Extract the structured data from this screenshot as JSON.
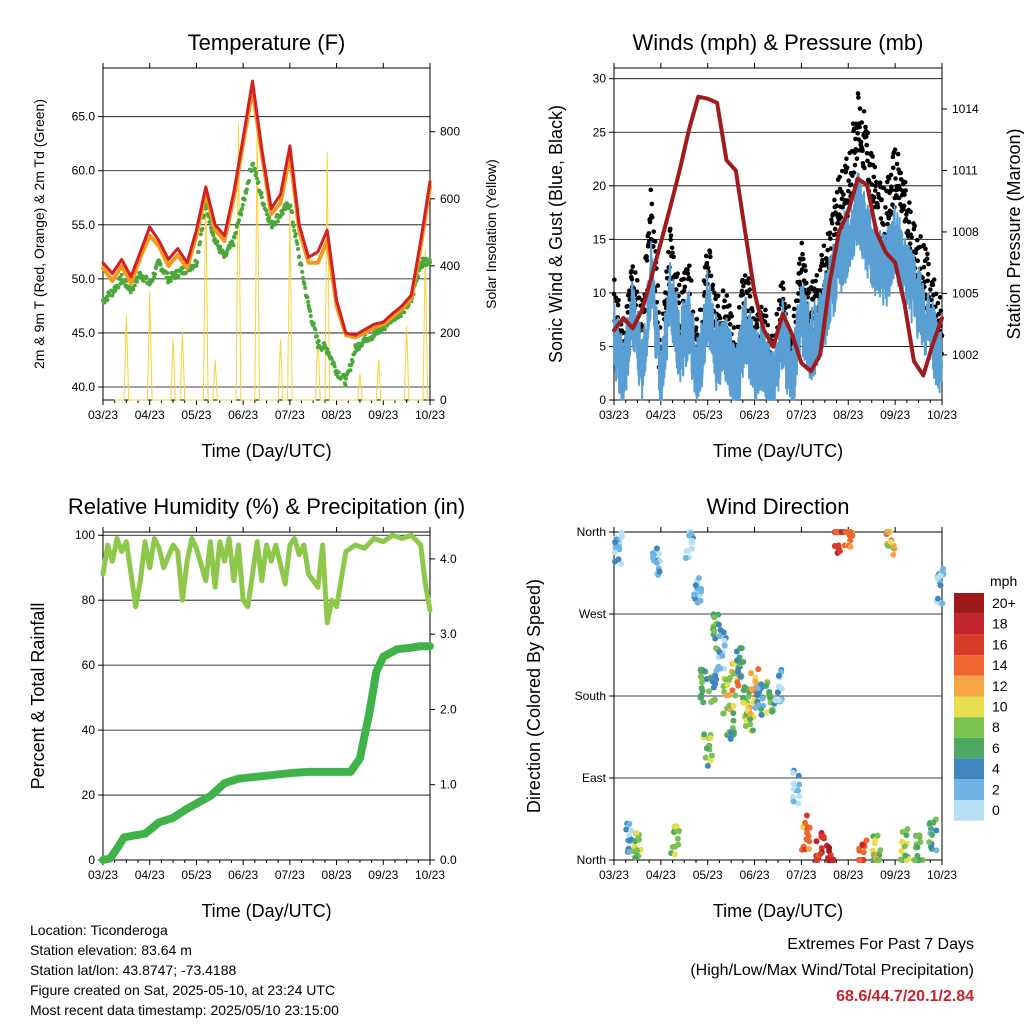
{
  "footer": {
    "location": "Location: Ticonderoga",
    "elevation": "Station elevation: 83.64 m",
    "latlon": "Station lat/lon: 43.8747; -73.4188",
    "created": "Figure created on Sat, 2025-05-10, at 23:24 UTC",
    "recent": "Most recent data timestamp: 2025/05/10 23:15:00",
    "extremes_title": "Extremes For Past 7 Days",
    "extremes_sub": "(High/Low/Max Wind/Total Precipitation)",
    "extremes_values": "68.6/44.7/20.1/2.84"
  },
  "colors": {
    "temp9m": "#d42020",
    "temp2m": "#f39a1e",
    "dewpoint": "#4aa83a",
    "solar": "#f5d33b",
    "gust": "#000000",
    "wind": "#5a9fd4",
    "pressure": "#a01c1c",
    "rh": "#8ec84a",
    "precip": "#3fb34a"
  },
  "chart_data": [
    {
      "type": "line",
      "title": "Temperature (F)",
      "xlabel": "Time (Day/UTC)",
      "ylabel": "2m & 9m T (Red, Orange) & 2m Td (Green)",
      "ylabel_right": "Solar Insolation (Yellow)",
      "xticks": [
        "03/23",
        "04/23",
        "05/23",
        "06/23",
        "07/23",
        "08/23",
        "09/23",
        "10/23"
      ],
      "xlim": [
        0,
        7
      ],
      "ylim": [
        38.8,
        69.5
      ],
      "yticks": [
        "40.0",
        "45.0",
        "50.0",
        "55.0",
        "60.0",
        "65.0"
      ],
      "ylim_right": [
        0,
        990
      ],
      "yticks_right": [
        "0",
        "200",
        "400",
        "600",
        "800"
      ],
      "grid": true,
      "series": [
        {
          "name": "9m T",
          "axis": "left",
          "x": [
            0,
            0.2,
            0.4,
            0.6,
            0.8,
            1.0,
            1.2,
            1.4,
            1.6,
            1.8,
            2.0,
            2.2,
            2.4,
            2.6,
            2.8,
            3.0,
            3.2,
            3.4,
            3.6,
            3.8,
            4.0,
            4.2,
            4.4,
            4.6,
            4.8,
            5.0,
            5.2,
            5.4,
            5.6,
            5.8,
            6.0,
            6.2,
            6.4,
            6.6,
            6.8,
            7.0
          ],
          "y": [
            51.5,
            50.5,
            51.8,
            50.2,
            52.5,
            54.8,
            53.5,
            51.8,
            52.8,
            51.5,
            54.5,
            58.5,
            55.0,
            54.0,
            58.0,
            63.0,
            68.3,
            62.0,
            56.5,
            57.8,
            62.3,
            55.0,
            52.0,
            52.5,
            54.5,
            48.0,
            45.0,
            44.8,
            45.3,
            45.8,
            46.0,
            46.8,
            47.5,
            48.5,
            53.5,
            59.0
          ]
        },
        {
          "name": "2m T",
          "axis": "left",
          "x": [
            0,
            0.2,
            0.4,
            0.6,
            0.8,
            1.0,
            1.2,
            1.4,
            1.6,
            1.8,
            2.0,
            2.2,
            2.4,
            2.6,
            2.8,
            3.0,
            3.2,
            3.4,
            3.6,
            3.8,
            4.0,
            4.2,
            4.4,
            4.6,
            4.8,
            5.0,
            5.2,
            5.4,
            5.6,
            5.8,
            6.0,
            6.2,
            6.4,
            6.6,
            6.8,
            7.0
          ],
          "y": [
            51.0,
            49.8,
            51.2,
            49.6,
            52.0,
            54.0,
            53.0,
            51.2,
            52.2,
            51.0,
            54.0,
            58.0,
            54.5,
            53.5,
            57.5,
            62.5,
            67.5,
            61.5,
            56.0,
            57.0,
            61.5,
            54.5,
            51.5,
            51.5,
            53.5,
            47.5,
            44.8,
            44.6,
            45.0,
            45.5,
            45.8,
            46.5,
            47.2,
            48.2,
            53.0,
            58.5
          ]
        },
        {
          "name": "2m Td",
          "axis": "left",
          "x": [
            0,
            0.2,
            0.4,
            0.6,
            0.8,
            1.0,
            1.2,
            1.4,
            1.6,
            1.8,
            2.0,
            2.2,
            2.4,
            2.6,
            2.8,
            3.0,
            3.2,
            3.4,
            3.6,
            3.8,
            4.0,
            4.2,
            4.4,
            4.6,
            4.8,
            5.0,
            5.2,
            5.4,
            5.6,
            5.8,
            6.0,
            6.2,
            6.4,
            6.6,
            6.8,
            7.0
          ],
          "y": [
            48.0,
            48.8,
            50.0,
            49.0,
            50.5,
            49.5,
            51.5,
            50.0,
            50.5,
            51.0,
            51.5,
            57.0,
            53.5,
            52.0,
            53.5,
            57.0,
            60.8,
            57.5,
            55.0,
            56.0,
            57.0,
            52.0,
            47.5,
            44.0,
            43.5,
            41.5,
            40.5,
            43.5,
            44.5,
            44.8,
            45.5,
            46.5,
            47.0,
            48.0,
            51.5,
            51.5
          ]
        },
        {
          "name": "Solar",
          "axis": "right",
          "x": [
            0.3,
            0.5,
            0.8,
            1.0,
            1.3,
            1.5,
            1.7,
            1.9,
            2.2,
            2.4,
            2.6,
            2.9,
            3.1,
            3.3,
            3.5,
            3.8,
            4.0,
            4.2,
            4.4,
            4.6,
            4.8,
            5.0,
            5.3,
            5.5,
            5.7,
            5.9,
            6.1,
            6.3,
            6.5,
            6.7,
            6.9
          ],
          "y": [
            0,
            250,
            0,
            320,
            0,
            180,
            200,
            0,
            640,
            120,
            0,
            820,
            0,
            800,
            0,
            180,
            560,
            0,
            0,
            200,
            740,
            0,
            0,
            80,
            0,
            120,
            0,
            0,
            220,
            0,
            450
          ]
        }
      ]
    },
    {
      "type": "scatter",
      "title": "Winds (mph) & Pressure (mb)",
      "xlabel": "Time (Day/UTC)",
      "ylabel": "Sonic Wind & Gust (Blue, Black)",
      "ylabel_right": "Station Pressure (Maroon)",
      "xticks": [
        "03/23",
        "04/23",
        "05/23",
        "06/23",
        "07/23",
        "08/23",
        "09/23",
        "10/23"
      ],
      "xlim": [
        0,
        7
      ],
      "ylim": [
        0,
        31
      ],
      "yticks": [
        "0",
        "5",
        "10",
        "15",
        "20",
        "25",
        "30"
      ],
      "ylim_right": [
        999.8,
        1016
      ],
      "yticks_right": [
        "1002",
        "1005",
        "1008",
        "1011",
        "1014"
      ],
      "grid": true,
      "series": [
        {
          "name": "Gust",
          "axis": "left",
          "x": [
            0,
            0.2,
            0.4,
            0.6,
            0.8,
            1.0,
            1.2,
            1.4,
            1.6,
            1.8,
            2.0,
            2.2,
            2.4,
            2.6,
            2.8,
            3.0,
            3.2,
            3.4,
            3.6,
            3.8,
            4.0,
            4.2,
            4.4,
            4.6,
            4.8,
            5.0,
            5.2,
            5.4,
            5.6,
            5.8,
            6.0,
            6.2,
            6.4,
            6.6,
            6.8,
            7.0
          ],
          "y": [
            9,
            4,
            11,
            6,
            18,
            3,
            14,
            8,
            10,
            4,
            12,
            7,
            8,
            3,
            11,
            5,
            6,
            3,
            9,
            4,
            12,
            8,
            10,
            14,
            18,
            20,
            26,
            23,
            18,
            17,
            21,
            18,
            14,
            12,
            9,
            6
          ]
        },
        {
          "name": "Wind",
          "axis": "left",
          "x": [
            0,
            0.2,
            0.4,
            0.6,
            0.8,
            1.0,
            1.2,
            1.4,
            1.6,
            1.8,
            2.0,
            2.2,
            2.4,
            2.6,
            2.8,
            3.0,
            3.2,
            3.4,
            3.6,
            3.8,
            4.0,
            4.2,
            4.4,
            4.6,
            4.8,
            5.0,
            5.2,
            5.4,
            5.6,
            5.8,
            6.0,
            6.2,
            6.4,
            6.6,
            6.8,
            7.0
          ],
          "y": [
            6,
            2,
            8,
            3,
            12,
            1,
            10,
            5,
            7,
            2,
            9,
            4,
            5,
            1,
            7,
            3,
            4,
            1,
            6,
            2,
            8,
            5,
            7,
            10,
            13,
            15,
            18,
            15,
            13,
            12,
            15,
            12,
            10,
            8,
            6,
            3
          ]
        },
        {
          "name": "Pressure",
          "axis": "right",
          "x": [
            0,
            0.2,
            0.4,
            0.6,
            0.8,
            1.0,
            1.2,
            1.4,
            1.6,
            1.8,
            2.0,
            2.2,
            2.4,
            2.6,
            2.8,
            3.0,
            3.2,
            3.4,
            3.6,
            3.8,
            4.0,
            4.2,
            4.4,
            4.6,
            4.8,
            5.0,
            5.2,
            5.4,
            5.6,
            5.8,
            6.0,
            6.2,
            6.4,
            6.6,
            6.8,
            7.0
          ],
          "y": [
            1003.2,
            1003.8,
            1003.3,
            1004.2,
            1005.8,
            1007.5,
            1009.2,
            1011.0,
            1013.0,
            1014.6,
            1014.5,
            1014.3,
            1011.5,
            1011.0,
            1008.0,
            1005.0,
            1003.2,
            1002.4,
            1004.0,
            1003.0,
            1001.6,
            1001.2,
            1002.0,
            1005.5,
            1008.0,
            1009.0,
            1010.6,
            1010.3,
            1008.0,
            1007.0,
            1006.5,
            1004.5,
            1001.7,
            1001.0,
            1002.5,
            1003.8
          ]
        }
      ]
    },
    {
      "type": "line",
      "title": "Relative Humidity (%) & Precipitation (in)",
      "xlabel": "Time (Day/UTC)",
      "ylabel": "Percent & Total Rainfall",
      "xticks": [
        "03/23",
        "04/23",
        "05/23",
        "06/23",
        "07/23",
        "08/23",
        "09/23",
        "10/23"
      ],
      "xlim": [
        0,
        7
      ],
      "ylim": [
        0,
        101
      ],
      "yticks": [
        "0",
        "20",
        "40",
        "60",
        "80",
        "100"
      ],
      "ylim_right": [
        0,
        4.357
      ],
      "yticks_right": [
        "0.0",
        "1.0",
        "2.0",
        "3.0",
        "4.0"
      ],
      "grid": true,
      "series": [
        {
          "name": "RH",
          "axis": "left",
          "x": [
            0,
            0.1,
            0.2,
            0.3,
            0.4,
            0.5,
            0.7,
            0.8,
            0.9,
            1.0,
            1.1,
            1.2,
            1.3,
            1.5,
            1.6,
            1.7,
            1.8,
            1.9,
            2.0,
            2.2,
            2.3,
            2.4,
            2.5,
            2.6,
            2.7,
            2.8,
            2.9,
            3.0,
            3.1,
            3.2,
            3.3,
            3.4,
            3.5,
            3.6,
            3.7,
            3.9,
            4.0,
            4.1,
            4.2,
            4.3,
            4.4,
            4.6,
            4.7,
            4.8,
            4.9,
            5.0,
            5.2,
            5.4,
            5.6,
            5.8,
            6.0,
            6.2,
            6.4,
            6.6,
            6.8,
            6.9,
            7.0
          ],
          "y": [
            88,
            97,
            92,
            99,
            95,
            98,
            78,
            86,
            98,
            90,
            99,
            96,
            90,
            97,
            95,
            80,
            92,
            99,
            96,
            86,
            98,
            84,
            98,
            92,
            99,
            86,
            97,
            80,
            78,
            88,
            98,
            86,
            97,
            92,
            97,
            85,
            97,
            99,
            94,
            97,
            88,
            84,
            97,
            73,
            80,
            78,
            95,
            97,
            96,
            99,
            98,
            100,
            99,
            100,
            97,
            85,
            77
          ]
        },
        {
          "name": "Total Rainfall",
          "axis": "right",
          "x": [
            0,
            0.15,
            0.3,
            0.45,
            0.7,
            0.9,
            1.2,
            1.5,
            1.8,
            2.0,
            2.3,
            2.6,
            2.9,
            3.2,
            3.5,
            3.8,
            4.1,
            4.4,
            4.7,
            5.0,
            5.3,
            5.5,
            5.7,
            5.85,
            6.0,
            6.3,
            6.6,
            6.8,
            7.0
          ],
          "y": [
            0.0,
            0.02,
            0.15,
            0.3,
            0.33,
            0.35,
            0.5,
            0.56,
            0.68,
            0.75,
            0.85,
            1.02,
            1.08,
            1.1,
            1.12,
            1.14,
            1.16,
            1.17,
            1.17,
            1.17,
            1.17,
            1.35,
            1.95,
            2.5,
            2.7,
            2.8,
            2.82,
            2.84,
            2.84
          ]
        }
      ]
    },
    {
      "type": "scatter",
      "title": "Wind Direction",
      "xlabel": "Time (Day/UTC)",
      "ylabel": "Direction (Colored By Speed)",
      "xticks": [
        "03/23",
        "04/23",
        "05/23",
        "06/23",
        "07/23",
        "08/23",
        "09/23",
        "10/23"
      ],
      "xlim": [
        0,
        7
      ],
      "ylim": [
        0,
        360
      ],
      "yticks": [
        "North",
        "East",
        "South",
        "West",
        "North"
      ],
      "legend": {
        "title": "mph",
        "position": "right",
        "levels": [
          "20+",
          "18",
          "16",
          "14",
          "12",
          "10",
          "8",
          "6",
          "4",
          "2",
          "0"
        ],
        "colors": [
          "#9e1a1a",
          "#c1262a",
          "#d93b2b",
          "#ef6530",
          "#f6a544",
          "#e8df50",
          "#7bc150",
          "#4ea864",
          "#3f86bf",
          "#6fb4e2",
          "#b8e0f5"
        ]
      },
      "series": [
        {
          "name": "Direction",
          "x": [
            0.1,
            0.3,
            0.5,
            0.9,
            1.3,
            1.6,
            1.8,
            1.9,
            2.0,
            2.1,
            2.2,
            2.3,
            2.4,
            2.5,
            2.6,
            2.7,
            2.8,
            2.9,
            3.0,
            3.1,
            3.3,
            3.5,
            3.9,
            4.1,
            4.4,
            4.6,
            4.8,
            5.0,
            5.3,
            5.6,
            5.9,
            6.2,
            6.5,
            6.8,
            6.95
          ],
          "y": [
            340,
            20,
            15,
            330,
            20,
            345,
            300,
            190,
            120,
            190,
            250,
            230,
            180,
            150,
            200,
            220,
            170,
            160,
            190,
            175,
            180,
            190,
            80,
            30,
            12,
            5,
            356,
            358,
            2,
            8,
            355,
            15,
            10,
            30,
            300
          ],
          "speed": [
            3,
            4,
            9,
            2,
            10,
            2,
            3,
            6,
            8,
            6,
            7,
            4,
            11,
            8,
            12,
            6,
            9,
            10,
            12,
            5,
            8,
            3,
            2,
            14,
            18,
            20,
            17,
            14,
            16,
            10,
            12,
            9,
            8,
            6,
            2
          ]
        }
      ]
    }
  ]
}
